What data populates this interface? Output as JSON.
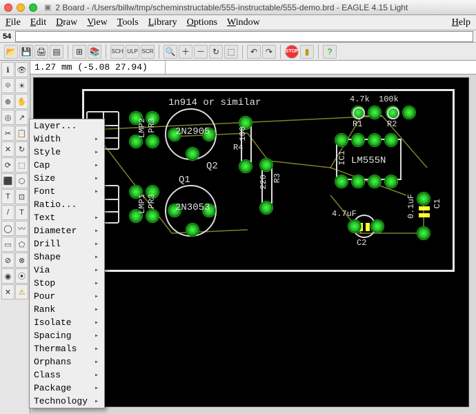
{
  "window": {
    "title": "2 Board - /Users/billw/tmp/scheminstructable/555-instructable/555-demo.brd - EAGLE 4.15 Light"
  },
  "menus": {
    "file": {
      "label": "File",
      "ukey": "F"
    },
    "edit": {
      "label": "Edit",
      "ukey": "E"
    },
    "draw": {
      "label": "Draw",
      "ukey": "D"
    },
    "view": {
      "label": "View",
      "ukey": "V"
    },
    "tools": {
      "label": "Tools",
      "ukey": "T"
    },
    "library": {
      "label": "Library",
      "ukey": "L"
    },
    "options": {
      "label": "Options",
      "ukey": "O"
    },
    "window": {
      "label": "Window",
      "ukey": "W"
    },
    "help": {
      "label": "Help",
      "ukey": "H"
    }
  },
  "inputrow": {
    "label": "54",
    "value": ""
  },
  "coord": {
    "text": "1.27 mm (-5.08 27.94)"
  },
  "toolbar_icons": [
    "📂",
    "💾",
    "🖨",
    "📋",
    "|",
    "↩",
    "📦",
    "|",
    "SCH",
    "ULP",
    "SCR",
    "|",
    "🔍-",
    "🔍+",
    "🔍",
    "🔲",
    "🔍?",
    "|",
    "↶",
    "↷",
    "|",
    "STOP",
    "📖",
    "|",
    "?"
  ],
  "palette_icons": [
    "ℹ",
    "👁",
    "፨",
    "☀",
    "⊕",
    "✋",
    "◎",
    "↗",
    "✂",
    "📋",
    "✕",
    "↻",
    "⟳",
    "⬚",
    "⬛",
    "⬡",
    "T",
    "⊡",
    "/",
    "▭",
    "◯",
    "〰",
    "⊘",
    "⊗",
    "◉",
    "⦿",
    "✕",
    "●",
    "⊕",
    "⚠"
  ],
  "ctx": {
    "items": [
      "Layer...",
      "Width",
      "Style",
      "Cap",
      "Size",
      "Font",
      "Ratio...",
      "Text",
      "Diameter",
      "Drill",
      "Shape",
      "Via",
      "Stop",
      "Pour",
      "Rank",
      "Isolate",
      "Spacing",
      "Thermals",
      "Orphans",
      "Class",
      "Package",
      "Technology"
    ]
  },
  "board": {
    "labels": {
      "diode": "1n914 or similar",
      "q1": "Q1",
      "q2": "Q2",
      "q1part": "2N3053",
      "q2part": "2N2905",
      "r1": "R1",
      "r2": "R2",
      "r1v": "4.7k",
      "r2v": "100k",
      "r3": "R3",
      "r3v": "220",
      "r4": "R4",
      "r4v": "100",
      "c1": "C1",
      "c1v": "0.1uF",
      "c2": "C2",
      "c2v": "4.7uF",
      "ic": "IC1",
      "icpart": "LM555N",
      "lmp1": "LMP1",
      "pr1": "PR3",
      "lmp2": "LMP2",
      "pr2": "PR3"
    }
  }
}
